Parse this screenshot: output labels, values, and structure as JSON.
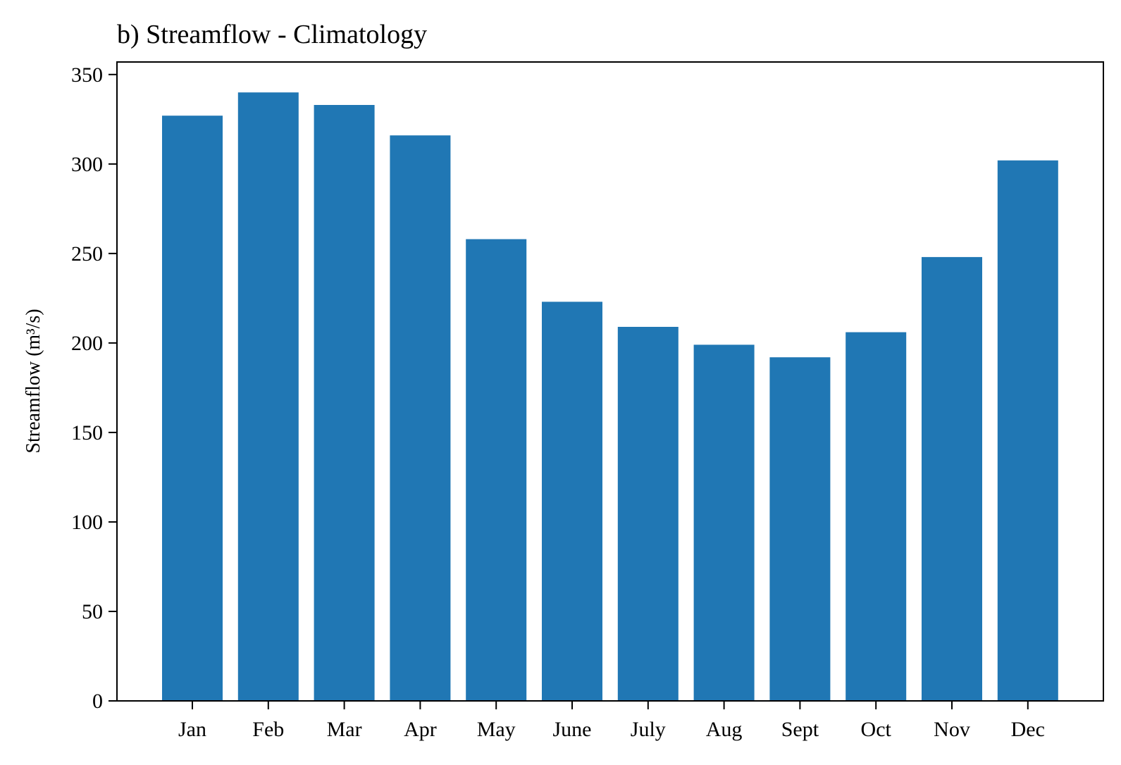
{
  "chart_data": {
    "type": "bar",
    "title": "b) Streamflow - Climatology",
    "xlabel": "",
    "ylabel": "Streamflow (m³/s)",
    "categories": [
      "Jan",
      "Feb",
      "Mar",
      "Apr",
      "May",
      "June",
      "July",
      "Aug",
      "Sept",
      "Oct",
      "Nov",
      "Dec"
    ],
    "values": [
      327,
      340,
      333,
      316,
      258,
      223,
      209,
      199,
      192,
      206,
      248,
      302
    ],
    "ylim": [
      0,
      357
    ],
    "yticks": [
      0,
      50,
      100,
      150,
      200,
      250,
      300,
      350
    ],
    "bar_color": "#2077b4",
    "grid": false,
    "legend": "none"
  }
}
